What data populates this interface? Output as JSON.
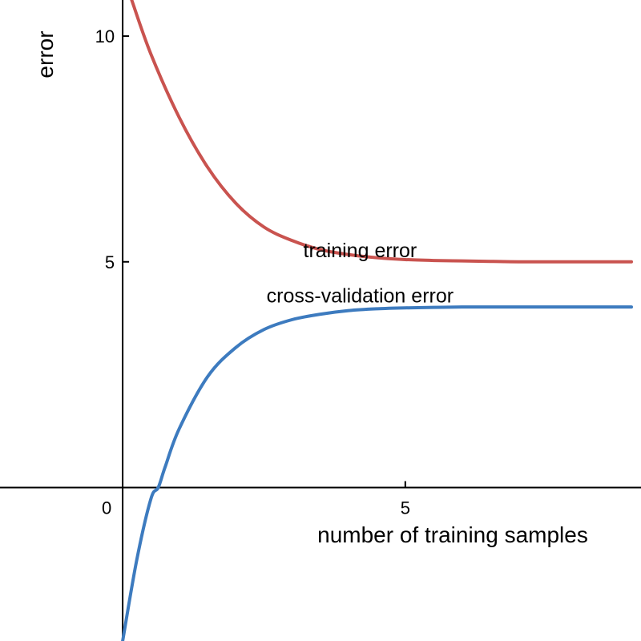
{
  "chart_data": {
    "type": "line",
    "title": "",
    "xlabel": "number of training samples",
    "ylabel": "error",
    "xlim": [
      -2.17,
      9.17
    ],
    "ylim": [
      -3.4,
      10.8
    ],
    "grid": false,
    "x_ticks": [
      {
        "value": 0,
        "label": "0"
      },
      {
        "value": 5,
        "label": "5"
      }
    ],
    "y_ticks": [
      {
        "value": 5,
        "label": "5"
      },
      {
        "value": 10,
        "label": "10"
      }
    ],
    "series": [
      {
        "name": "training error",
        "color": "#c9534f",
        "x": [
          0.16,
          0.5,
          1.0,
          1.5,
          2.0,
          2.5,
          3.0,
          3.5,
          4.0,
          4.5,
          5.0,
          5.5,
          6.0,
          6.5,
          7.0,
          7.5,
          8.0,
          8.5,
          9.0
        ],
        "y": [
          10.8,
          9.6,
          8.2,
          7.1,
          6.3,
          5.77,
          5.47,
          5.27,
          5.16,
          5.09,
          5.05,
          5.03,
          5.02,
          5.01,
          5.0,
          5.0,
          5.0,
          5.0,
          5.0
        ]
      },
      {
        "name": "cross-validation error",
        "color": "#3d7bbf",
        "x": [
          0.0,
          0.25,
          0.5,
          0.63,
          0.75,
          1.0,
          1.5,
          2.0,
          2.5,
          3.0,
          3.5,
          4.0,
          4.5,
          5.0,
          5.5,
          6.0,
          6.5,
          7.0,
          7.5,
          8.0,
          8.5,
          9.0
        ],
        "y": [
          -3.4,
          -1.6,
          -0.25,
          0.0,
          0.45,
          1.3,
          2.45,
          3.1,
          3.5,
          3.72,
          3.84,
          3.92,
          3.96,
          3.98,
          3.99,
          4.0,
          4.0,
          4.0,
          4.0,
          4.0,
          4.0,
          4.0
        ]
      }
    ],
    "annotations": [
      {
        "text": "training error",
        "x": 4.2,
        "y": 5.1,
        "series": 0
      },
      {
        "text": "cross-validation error",
        "x": 4.2,
        "y": 4.1,
        "series": 1
      }
    ]
  }
}
